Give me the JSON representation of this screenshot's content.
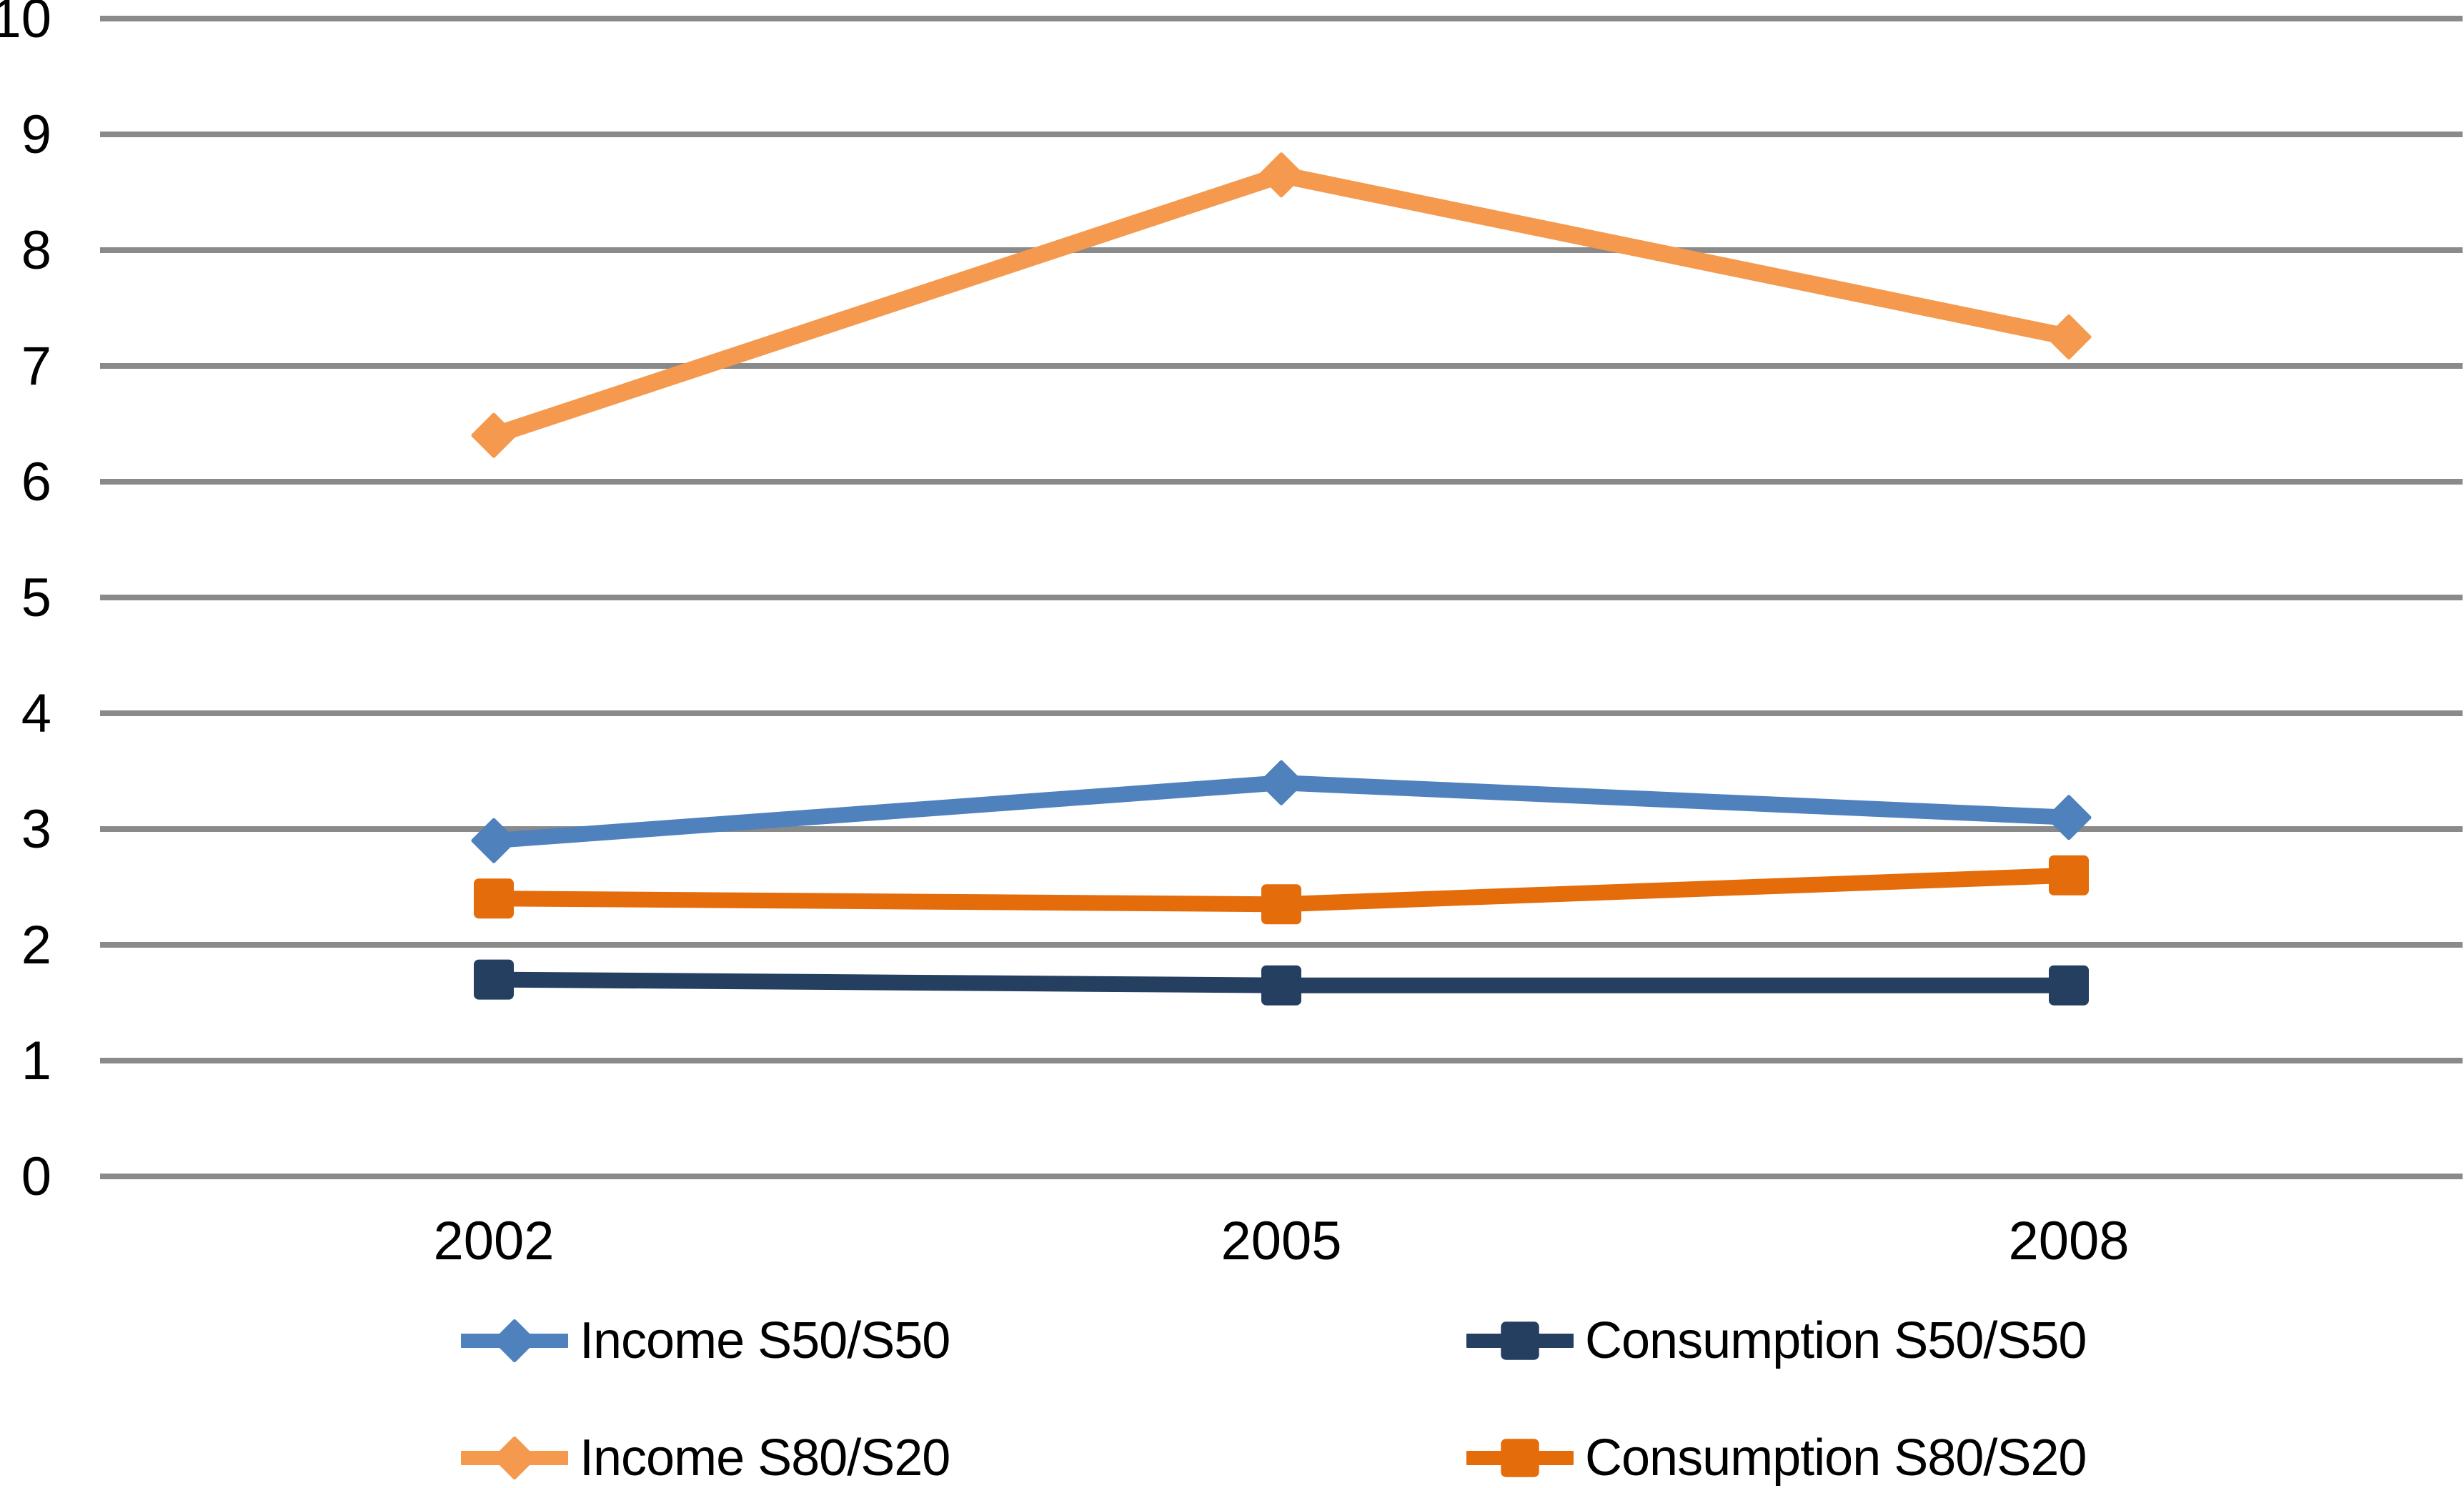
{
  "chart_data": {
    "type": "line",
    "categories": [
      "2002",
      "2005",
      "2008"
    ],
    "series": [
      {
        "name": "Income S50/S50",
        "values": [
          2.9,
          3.4,
          3.1
        ],
        "color": "#4F81BD",
        "marker": "diamond"
      },
      {
        "name": "Consumption S50/S50",
        "values": [
          1.7,
          1.65,
          1.65
        ],
        "color": "#243F5F",
        "marker": "square"
      },
      {
        "name": "Income S80/S20",
        "values": [
          6.4,
          8.65,
          7.25
        ],
        "color": "#F4994E",
        "marker": "diamond"
      },
      {
        "name": "Consumption S80/S20",
        "values": [
          2.4,
          2.35,
          2.6
        ],
        "color": "#E46C0A",
        "marker": "square"
      }
    ],
    "ylim": [
      0,
      10
    ],
    "yticks": [
      "0",
      "1",
      "2",
      "3",
      "4",
      "5",
      "6",
      "7",
      "8",
      "9",
      "10"
    ],
    "grid": true,
    "gridline_color": "#8A8A8A",
    "tick_label_color": "#000000",
    "legend_position": "bottom"
  }
}
